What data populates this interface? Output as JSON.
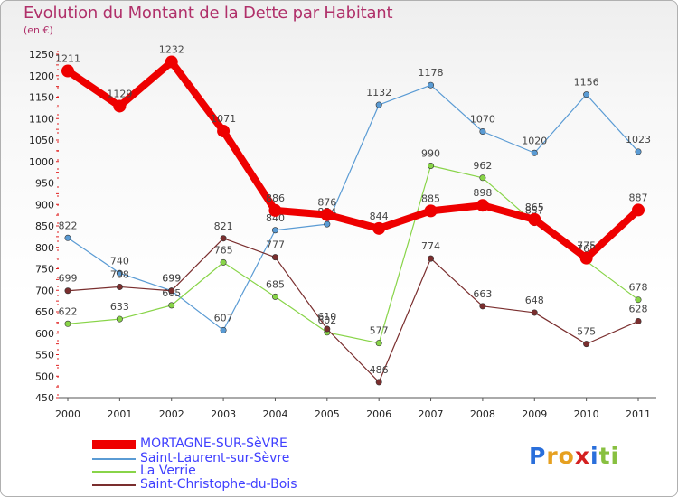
{
  "chart_data": {
    "type": "line",
    "title": "Evolution du Montant de la Dette par Habitant",
    "subtitle": "(en €)",
    "x": [
      "2000",
      "2001",
      "2002",
      "2003",
      "2004",
      "2005",
      "2006",
      "2007",
      "2008",
      "2009",
      "2010",
      "2011"
    ],
    "ylim": [
      450,
      1250
    ],
    "yticks": [
      450,
      500,
      550,
      600,
      650,
      700,
      750,
      800,
      850,
      900,
      950,
      1000,
      1050,
      1100,
      1150,
      1200,
      1250
    ],
    "grid": false,
    "legend_position": "bottom-left",
    "series": [
      {
        "name": "MORTAGNE-SUR-SèVRE",
        "color": "#ee0000",
        "values": [
          1211,
          1129,
          1232,
          1071,
          886,
          876,
          844,
          885,
          898,
          865,
          775,
          887
        ]
      },
      {
        "name": "Saint-Laurent-sur-Sèvre",
        "color": "#5a9bd4",
        "values": [
          822,
          740,
          699,
          607,
          840,
          854,
          1132,
          1178,
          1070,
          1020,
          1156,
          1023
        ]
      },
      {
        "name": "La Verrie",
        "color": "#88d448",
        "values": [
          622,
          633,
          665,
          765,
          685,
          602,
          577,
          990,
          962,
          857,
          768,
          678
        ]
      },
      {
        "name": "Saint-Christophe-du-Bois",
        "color": "#7a2e2e",
        "values": [
          699,
          708,
          699,
          821,
          777,
          610,
          486,
          774,
          663,
          648,
          575,
          628
        ]
      }
    ]
  },
  "legend_colors": [
    "#4040ff",
    "#4040ff",
    "#4040ff",
    "#4040ff"
  ],
  "logo": {
    "text": "Proxiti",
    "letters": [
      "P",
      "r",
      "o",
      "x",
      "i",
      "t",
      "i"
    ],
    "colors": [
      "#2a6fdb",
      "#e6a020",
      "#e6a020",
      "#d42020",
      "#2a6fdb",
      "#88c040",
      "#88c040"
    ]
  }
}
